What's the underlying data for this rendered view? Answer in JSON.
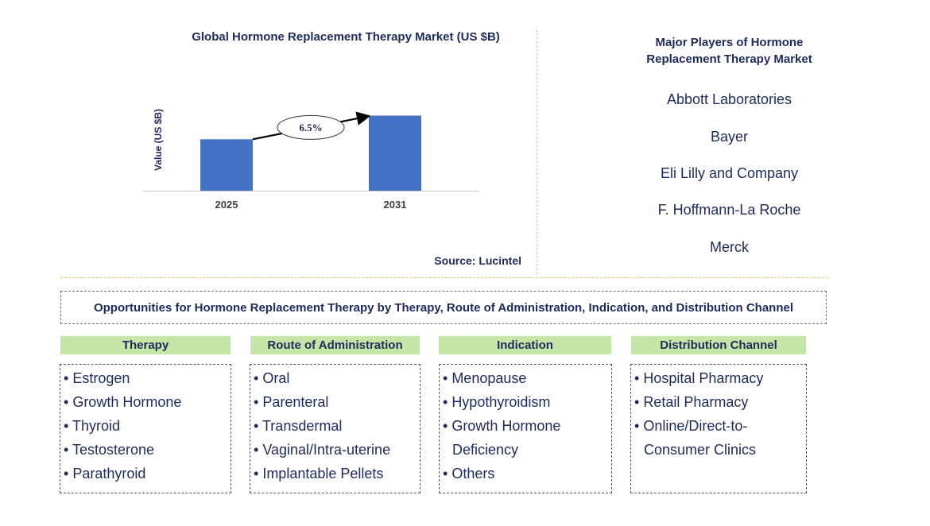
{
  "chart_data": {
    "type": "bar",
    "title": "Global Hormone Replacement Therapy Market (US $B)",
    "ylabel": "Value (US $B)",
    "xlabel": "",
    "categories": [
      "2025",
      "2031"
    ],
    "values": [
      1.0,
      1.46
    ],
    "ylim": [
      0,
      1.7
    ],
    "annotation": {
      "label": "6.5%",
      "meaning": "CAGR arrow from 2025 to 2031"
    },
    "grid": false,
    "bar_color": "#4472c4"
  },
  "source": "Source: Lucintel",
  "players": {
    "title_line1": "Major Players of Hormone",
    "title_line2": "Replacement Therapy Market",
    "items": [
      "Abbott Laboratories",
      "Bayer",
      "Eli Lilly and Company",
      "F. Hoffmann-La Roche",
      "Merck"
    ]
  },
  "opportunities": {
    "title": "Opportunities for Hormone Replacement Therapy by Therapy, Route of Administration, Indication, and Distribution Channel",
    "categories": [
      {
        "title": "Therapy",
        "items": [
          "Estrogen",
          "Growth Hormone",
          "Thyroid",
          "Testosterone",
          "Parathyroid"
        ]
      },
      {
        "title": "Route of Administration",
        "items": [
          "Oral",
          "Parenteral",
          "Transdermal",
          "Vaginal/Intra-uterine",
          "Implantable Pellets"
        ]
      },
      {
        "title": "Indication",
        "items": [
          "Menopause",
          "Hypothyroidism",
          "Growth Hormone Deficiency",
          "Others"
        ]
      },
      {
        "title": "Distribution Channel",
        "items": [
          "Hospital Pharmacy",
          "Retail Pharmacy",
          "Online/Direct-to-Consumer Clinics"
        ]
      }
    ]
  },
  "colors": {
    "header_green": "#c5e6a6",
    "divider_gold": "#e8c66a",
    "text_navy": "#1f2a5c"
  }
}
